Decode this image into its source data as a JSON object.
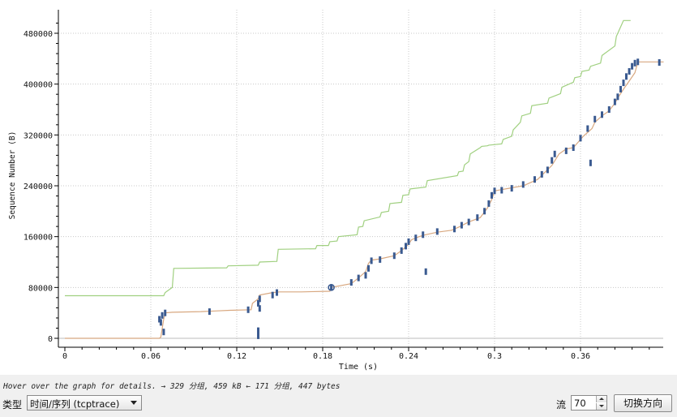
{
  "chart_data": {
    "type": "line",
    "title": "",
    "xlabel": "Time (s)",
    "ylabel": "Sequence Number (B)",
    "xlim": [
      0,
      0.418
    ],
    "ylim": [
      -10000,
      500000
    ],
    "x_ticks": [
      "0",
      "0.06",
      "0.12",
      "0.18",
      "0.24",
      "0.3",
      "0.36"
    ],
    "x_tick_values": [
      0,
      0.06,
      0.12,
      0.18,
      0.24,
      0.3,
      0.36
    ],
    "y_ticks": [
      "0",
      "80000",
      "160000",
      "240000",
      "320000",
      "400000",
      "480000"
    ],
    "y_tick_values": [
      0,
      80000,
      160000,
      240000,
      320000,
      400000,
      480000
    ],
    "grid": true,
    "colors": {
      "window": "#a0d080",
      "ack": "#d8a880",
      "segments": "#3a5a90",
      "axis": "#000000"
    },
    "series": [
      {
        "role": "receive-window",
        "x": [
          0,
          0.069,
          0.07,
          0.075,
          0.076,
          0.113,
          0.114,
          0.135,
          0.136,
          0.148,
          0.149,
          0.175,
          0.176,
          0.184,
          0.185,
          0.19,
          0.191,
          0.204,
          0.205,
          0.208,
          0.209,
          0.22,
          0.221,
          0.226,
          0.227,
          0.235,
          0.236,
          0.24,
          0.241,
          0.252,
          0.253,
          0.274,
          0.275,
          0.278,
          0.279,
          0.282,
          0.283,
          0.29,
          0.291,
          0.295,
          0.296,
          0.305,
          0.306,
          0.312,
          0.313,
          0.318,
          0.319,
          0.325,
          0.326,
          0.337,
          0.338,
          0.346,
          0.347,
          0.355,
          0.356,
          0.36,
          0.361,
          0.366,
          0.367,
          0.374,
          0.375,
          0.384,
          0.385,
          0.39,
          0.395
        ],
        "y": [
          67000,
          67000,
          72000,
          80000,
          110000,
          111000,
          114000,
          115000,
          120000,
          121000,
          140000,
          141000,
          146000,
          146000,
          152000,
          153000,
          160000,
          163000,
          175000,
          176000,
          185000,
          191000,
          198000,
          200000,
          212000,
          214000,
          225000,
          226000,
          235000,
          238000,
          248000,
          256000,
          262000,
          263000,
          273000,
          278000,
          290000,
          300000,
          302000,
          303000,
          304000,
          306000,
          313000,
          318000,
          328000,
          340000,
          350000,
          354000,
          366000,
          370000,
          378000,
          385000,
          395000,
          403000,
          410000,
          412000,
          420000,
          422000,
          428000,
          433000,
          445000,
          460000,
          475000,
          500000,
          500000
        ]
      },
      {
        "role": "ack",
        "x": [
          0,
          0.066,
          0.067,
          0.069,
          0.07,
          0.075,
          0.095,
          0.105,
          0.115,
          0.13,
          0.131,
          0.135,
          0.136,
          0.145,
          0.15,
          0.165,
          0.185,
          0.186,
          0.2,
          0.205,
          0.21,
          0.212,
          0.214,
          0.22,
          0.23,
          0.235,
          0.24,
          0.242,
          0.245,
          0.25,
          0.26,
          0.27,
          0.275,
          0.282,
          0.29,
          0.295,
          0.298,
          0.3,
          0.305,
          0.31,
          0.32,
          0.33,
          0.34,
          0.345,
          0.35,
          0.355,
          0.362,
          0.368,
          0.37,
          0.375,
          0.38,
          0.384,
          0.386,
          0.39,
          0.395,
          0.398,
          0.4,
          0.418
        ],
        "y": [
          0,
          0,
          2000,
          30000,
          40000,
          41000,
          42000,
          43000,
          44000,
          45000,
          55000,
          62000,
          68000,
          72000,
          73000,
          73000,
          74000,
          80000,
          86000,
          95000,
          105000,
          118000,
          123000,
          125000,
          130000,
          138000,
          148000,
          155000,
          158000,
          162000,
          167000,
          170000,
          175000,
          183000,
          190000,
          205000,
          218000,
          232000,
          234000,
          236000,
          240000,
          250000,
          272000,
          290000,
          298000,
          300000,
          318000,
          330000,
          340000,
          350000,
          358000,
          370000,
          378000,
          392000,
          408000,
          418000,
          435000,
          435000
        ]
      }
    ],
    "segments": [
      {
        "x": 0.066,
        "y": 30000
      },
      {
        "x": 0.067,
        "y": 25000
      },
      {
        "x": 0.068,
        "y": 36000
      },
      {
        "x": 0.069,
        "y": 10000
      },
      {
        "x": 0.07,
        "y": 40000
      },
      {
        "x": 0.101,
        "y": 42000
      },
      {
        "x": 0.128,
        "y": 45000
      },
      {
        "x": 0.135,
        "y": 55000
      },
      {
        "x": 0.136,
        "y": 62000
      },
      {
        "x": 0.136,
        "y": 47000
      },
      {
        "x": 0.135,
        "y": 12000
      },
      {
        "x": 0.135,
        "y": 4000
      },
      {
        "x": 0.145,
        "y": 68000
      },
      {
        "x": 0.148,
        "y": 72000
      },
      {
        "x": 0.186,
        "y": 80000
      },
      {
        "x": 0.2,
        "y": 88000
      },
      {
        "x": 0.205,
        "y": 95000
      },
      {
        "x": 0.21,
        "y": 99000
      },
      {
        "x": 0.212,
        "y": 110000
      },
      {
        "x": 0.214,
        "y": 122000
      },
      {
        "x": 0.22,
        "y": 124000
      },
      {
        "x": 0.23,
        "y": 130000
      },
      {
        "x": 0.235,
        "y": 138000
      },
      {
        "x": 0.238,
        "y": 145000
      },
      {
        "x": 0.24,
        "y": 152000
      },
      {
        "x": 0.245,
        "y": 158000
      },
      {
        "x": 0.25,
        "y": 163000
      },
      {
        "x": 0.252,
        "y": 105000
      },
      {
        "x": 0.26,
        "y": 168000
      },
      {
        "x": 0.272,
        "y": 172000
      },
      {
        "x": 0.277,
        "y": 178000
      },
      {
        "x": 0.282,
        "y": 183000
      },
      {
        "x": 0.288,
        "y": 190000
      },
      {
        "x": 0.293,
        "y": 200000
      },
      {
        "x": 0.296,
        "y": 212000
      },
      {
        "x": 0.298,
        "y": 225000
      },
      {
        "x": 0.3,
        "y": 232000
      },
      {
        "x": 0.305,
        "y": 233000
      },
      {
        "x": 0.312,
        "y": 236000
      },
      {
        "x": 0.32,
        "y": 242000
      },
      {
        "x": 0.328,
        "y": 250000
      },
      {
        "x": 0.333,
        "y": 258000
      },
      {
        "x": 0.337,
        "y": 265000
      },
      {
        "x": 0.34,
        "y": 280000
      },
      {
        "x": 0.342,
        "y": 290000
      },
      {
        "x": 0.35,
        "y": 295000
      },
      {
        "x": 0.355,
        "y": 300000
      },
      {
        "x": 0.36,
        "y": 315000
      },
      {
        "x": 0.365,
        "y": 330000
      },
      {
        "x": 0.367,
        "y": 276000
      },
      {
        "x": 0.37,
        "y": 345000
      },
      {
        "x": 0.375,
        "y": 352000
      },
      {
        "x": 0.38,
        "y": 360000
      },
      {
        "x": 0.384,
        "y": 372000
      },
      {
        "x": 0.386,
        "y": 380000
      },
      {
        "x": 0.388,
        "y": 392000
      },
      {
        "x": 0.39,
        "y": 402000
      },
      {
        "x": 0.392,
        "y": 412000
      },
      {
        "x": 0.394,
        "y": 420000
      },
      {
        "x": 0.396,
        "y": 428000
      },
      {
        "x": 0.398,
        "y": 433000
      },
      {
        "x": 0.4,
        "y": 435000
      },
      {
        "x": 0.415,
        "y": 434000
      }
    ]
  },
  "status": {
    "hover_text": "Hover over the graph for details. → 329 分组, 459 kB ← 171 分组, 447 bytes"
  },
  "controls": {
    "type_label": "类型",
    "type_value": "时间/序列 (tcptrace)",
    "stream_label": "流",
    "stream_value": "70",
    "switch_label": "切换方向"
  }
}
